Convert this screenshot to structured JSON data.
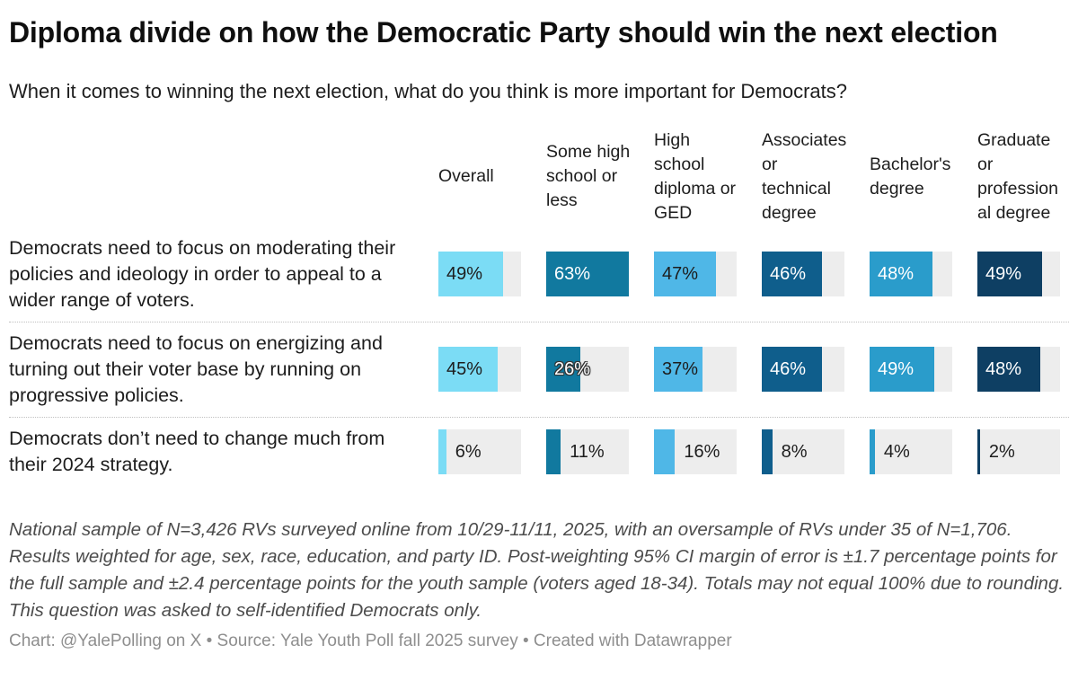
{
  "title": "Diploma divide on how the Democratic Party should win the next election",
  "subtitle": "When it comes to winning the next election, what do you think is more important for Democrats?",
  "table": {
    "columns": [
      {
        "label": "Overall",
        "color": "#7bdcf5",
        "label_color": "#1d1d1d"
      },
      {
        "label": "Some high school or less",
        "color": "#11799f",
        "label_color": "#ffffff"
      },
      {
        "label": "High school diploma or GED",
        "color": "#4fb7e7",
        "label_color": "#1d1d1d"
      },
      {
        "label": "Associates or technical degree",
        "color": "#0f5e8c",
        "label_color": "#ffffff"
      },
      {
        "label": "Bachelor's degree",
        "color": "#2a9ccb",
        "label_color": "#ffffff"
      },
      {
        "label": "Graduate or professional degree",
        "color": "#0e3f63",
        "label_color": "#ffffff"
      }
    ],
    "rows": [
      {
        "label": "Democrats need to focus on moderating their policies and ideology in order to appeal to a wider range of voters.",
        "values": [
          49,
          63,
          47,
          46,
          48,
          49
        ],
        "labels": [
          "49%",
          "63%",
          "47%",
          "46%",
          "48%",
          "49%"
        ]
      },
      {
        "label": "Democrats need to focus on energizing and turning out their voter base by running on progressive policies.",
        "values": [
          45,
          26,
          37,
          46,
          49,
          48
        ],
        "labels": [
          "45%",
          "26%",
          "37%",
          "46%",
          "49%",
          "48%"
        ]
      },
      {
        "label": "Democrats don’t need to change much from their 2024 strategy.",
        "values": [
          6,
          11,
          16,
          8,
          4,
          2
        ],
        "labels": [
          "6%",
          "11%",
          "16%",
          "8%",
          "4%",
          "2%"
        ]
      }
    ],
    "scale_max": 63,
    "unit": "%"
  },
  "colors": {
    "track": "#ededed",
    "accent_light": "#7bdcf5",
    "accent_dark": "#0e3f63"
  },
  "notes": "National sample of N=3,426 RVs surveyed online from 10/29-11/11, 2025, with an oversample of RVs under 35 of N=1,706. Results weighted for age, sex, race, education, and party ID. Post-weighting 95% CI margin of error is ±1.7 percentage points for the full sample and ±2.4 percentage points for the youth sample (voters aged 18-34). Totals may not equal 100% due to rounding. This question was asked to self-identified Democrats only.",
  "byline": "Chart: @YalePolling on X • Source: Yale Youth Poll fall 2025 survey • Created with Datawrapper",
  "chart_data": {
    "type": "bar",
    "title": "Diploma divide on how the Democratic Party should win the next election",
    "subtitle": "When it comes to winning the next election, what do you think is more important for Democrats?",
    "categories": [
      "Overall",
      "Some high school or less",
      "High school diploma or GED",
      "Associates or technical degree",
      "Bachelor's degree",
      "Graduate or professional degree"
    ],
    "series": [
      {
        "name": "Democrats need to focus on moderating their policies and ideology in order to appeal to a wider range of voters.",
        "values": [
          49,
          63,
          47,
          46,
          48,
          49
        ]
      },
      {
        "name": "Democrats need to focus on energizing and turning out their voter base by running on progressive policies.",
        "values": [
          45,
          26,
          37,
          46,
          49,
          48
        ]
      },
      {
        "name": "Democrats don’t need to change much from their 2024 strategy.",
        "values": [
          6,
          11,
          16,
          8,
          4,
          2
        ]
      }
    ],
    "unit": "%",
    "xlim": [
      0,
      63
    ],
    "bar_colors": [
      "#7bdcf5",
      "#11799f",
      "#4fb7e7",
      "#0f5e8c",
      "#2a9ccb",
      "#0e3f63"
    ],
    "layout": "horizontal bars in table cells, one color per education-level column, value labels on bars, grid off, no legend"
  }
}
